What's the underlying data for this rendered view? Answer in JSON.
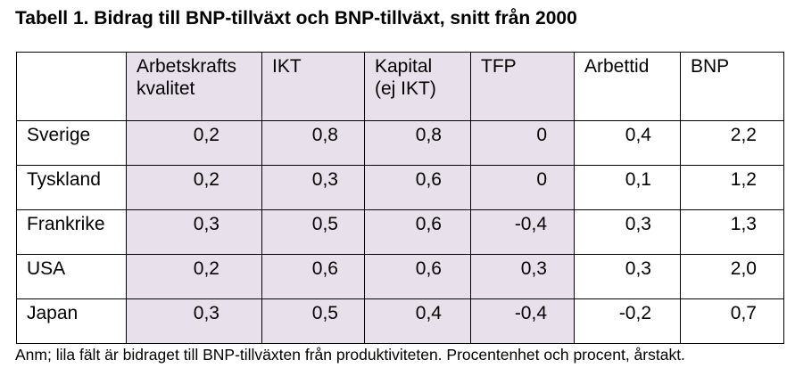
{
  "title": "Tabell 1. Bidrag till BNP-tillväxt och BNP-tillväxt, snitt från 2000",
  "colors": {
    "productivity_fill": "#e8e0ea",
    "border": "#000000"
  },
  "table": {
    "headers": [
      "",
      "Arbetskrafts\nkvalitet",
      "IKT",
      "Kapital\n(ej IKT)",
      "TFP",
      "Arbettid",
      "BNP"
    ],
    "rows": [
      {
        "country": "Sverige",
        "values": [
          "0,2",
          "0,8",
          "0,8",
          "0",
          "0,4",
          "2,2"
        ]
      },
      {
        "country": "Tyskland",
        "values": [
          "0,2",
          "0,3",
          "0,6",
          "0",
          "0,1",
          "1,2"
        ]
      },
      {
        "country": "Frankrike",
        "values": [
          "0,3",
          "0,5",
          "0,6",
          "-0,4",
          "0,3",
          "1,3"
        ]
      },
      {
        "country": "USA",
        "values": [
          "0,2",
          "0,6",
          "0,6",
          "0,3",
          "0,3",
          "2,0"
        ]
      },
      {
        "country": "Japan",
        "values": [
          "0,3",
          "0,5",
          "0,4",
          "-0,4",
          "-0,2",
          "0,7"
        ]
      }
    ]
  },
  "note": "Anm; lila fält är bidraget till BNP-tillväxten från produktiviteten. Procentenhet och procent, årstakt."
}
